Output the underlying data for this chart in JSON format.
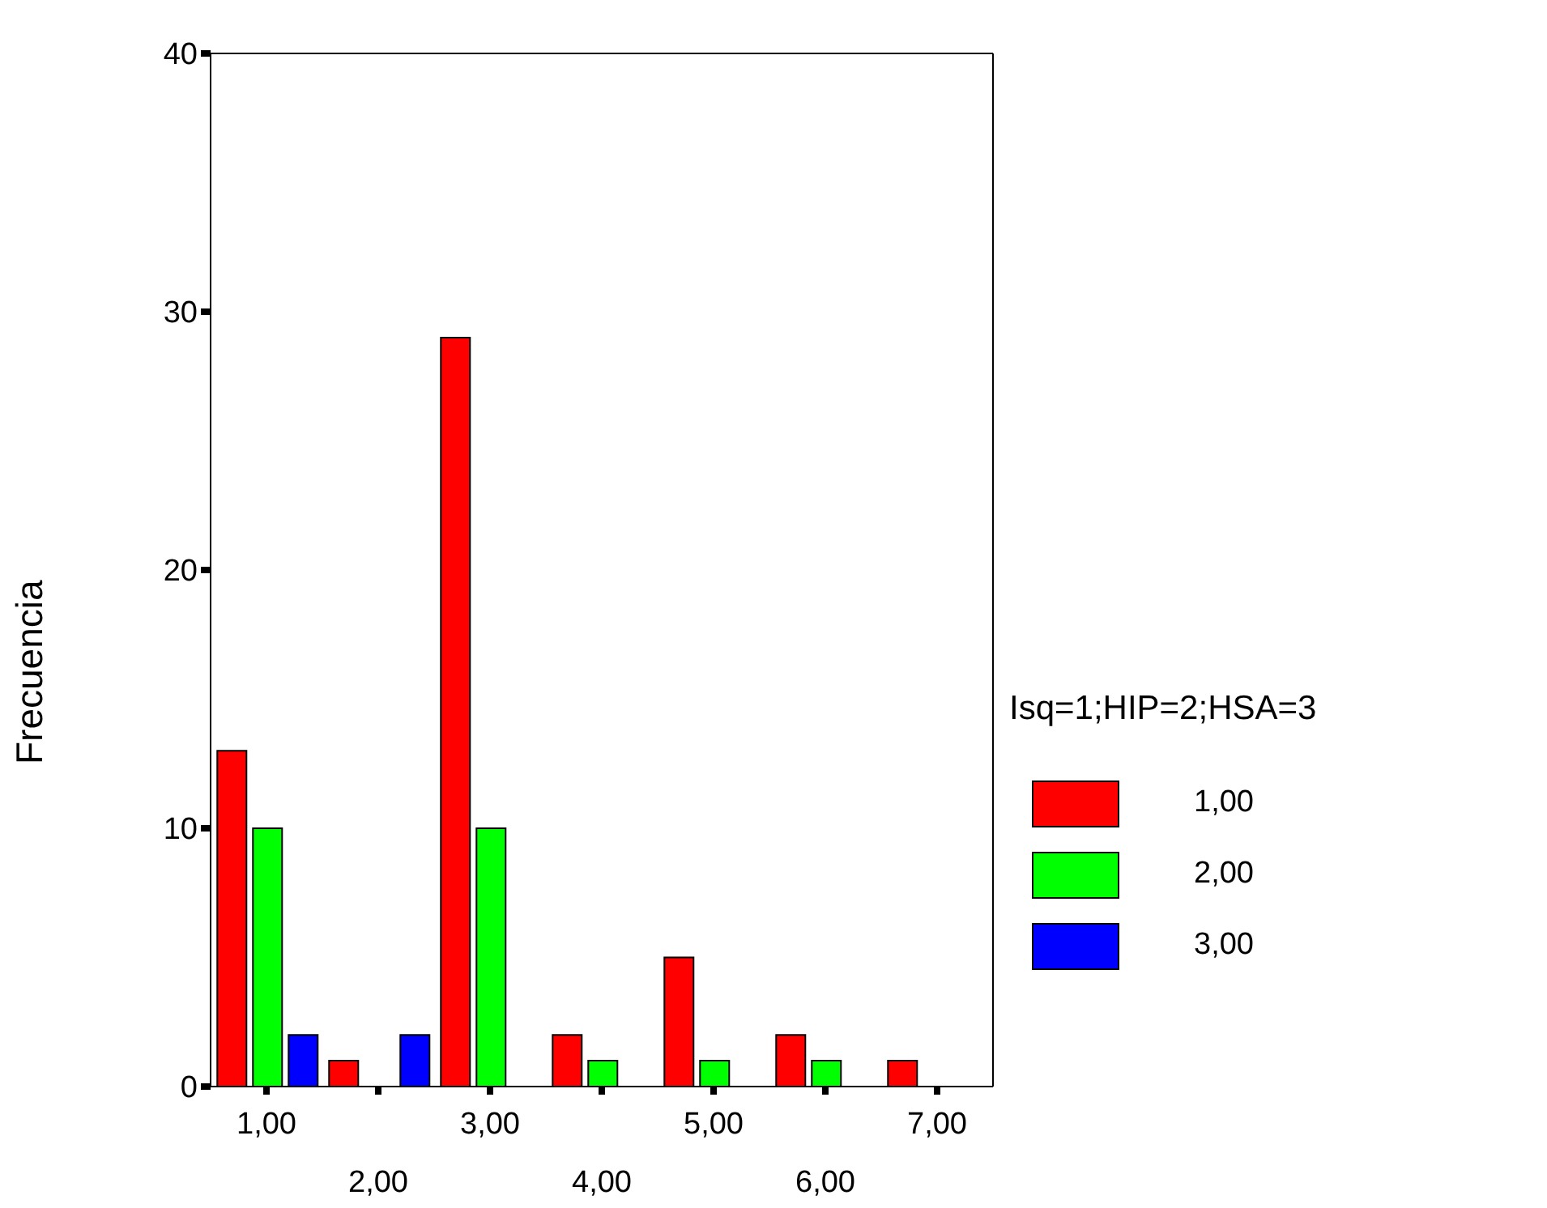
{
  "chart_data": {
    "type": "bar",
    "ylabel": "Frecuencia",
    "legend_title": "Isq=1;HIP=2;HSA=3",
    "categories": [
      "1,00",
      "2,00",
      "3,00",
      "4,00",
      "5,00",
      "6,00",
      "7,00"
    ],
    "series": [
      {
        "name": "1,00",
        "color": "#ff0000",
        "values": [
          13,
          1,
          29,
          2,
          5,
          2,
          1
        ]
      },
      {
        "name": "2,00",
        "color": "#00ff00",
        "values": [
          10,
          0,
          10,
          1,
          1,
          1,
          0
        ]
      },
      {
        "name": "3,00",
        "color": "#0000ff",
        "values": [
          2,
          2,
          0,
          0,
          0,
          0,
          0
        ]
      }
    ],
    "ylim": [
      0,
      40
    ],
    "yticks": [
      0,
      10,
      20,
      30,
      40
    ],
    "grid": false,
    "legend": "right"
  }
}
